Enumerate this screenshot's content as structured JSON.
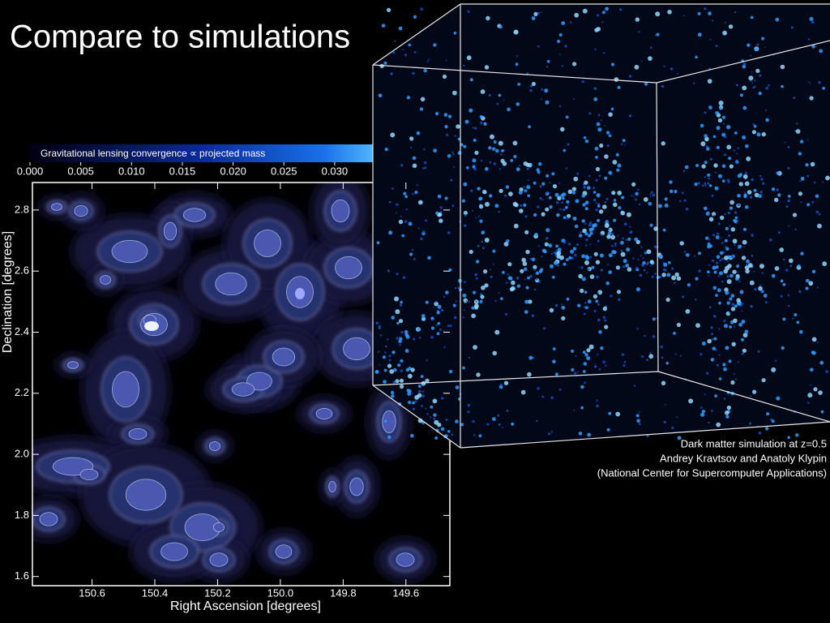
{
  "title": "Compare to simulations",
  "lensing_map": {
    "colorbar_label": "Gravitational lensing convergence ∝ projected mass",
    "colorbar_lim": [
      0,
      0.034
    ],
    "colorbar_ticks": [
      {
        "value": 0,
        "label": "0.000"
      },
      {
        "value": 0.005,
        "label": "0.005"
      },
      {
        "value": 0.01,
        "label": "0.010"
      },
      {
        "value": 0.015,
        "label": "0.015"
      },
      {
        "value": 0.02,
        "label": "0.020"
      },
      {
        "value": 0.025,
        "label": "0.025"
      },
      {
        "value": 0.03,
        "label": "0.030"
      }
    ],
    "x_label": "Right Ascension [degrees]",
    "y_label": "Declination [degrees]",
    "xlim": [
      150.79,
      149.46
    ],
    "ylim": [
      1.57,
      2.89
    ],
    "xticks": [
      150.6,
      150.4,
      150.2,
      {
        "value": 150,
        "label": "150.0"
      },
      149.8,
      149.6
    ],
    "yticks": [
      1.6,
      1.8,
      {
        "value": 2,
        "label": "2.0"
      },
      2.2,
      2.4,
      2.6,
      2.8
    ]
  },
  "caption": [
    "Dark matter simulation at z=0.5",
    "Andrey Kravtsov and Anatoly Klypin",
    "(National Center for Supercomputer Applications)"
  ]
}
